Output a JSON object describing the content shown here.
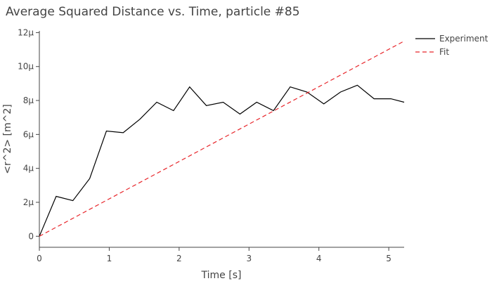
{
  "chart_data": {
    "type": "line",
    "title": "Average Squared Distance vs. Time, particle #85",
    "xlabel": "Time [s]",
    "ylabel": "<r^2> [m^2]",
    "xlim": [
      0,
      5.22
    ],
    "ylim": [
      -6.5e-07,
      1.21e-05
    ],
    "x_ticks": [
      {
        "value": 0,
        "label": "0"
      },
      {
        "value": 1,
        "label": "1"
      },
      {
        "value": 2,
        "label": "2"
      },
      {
        "value": 3,
        "label": "3"
      },
      {
        "value": 4,
        "label": "4"
      },
      {
        "value": 5,
        "label": "5"
      }
    ],
    "y_ticks": [
      {
        "value": 0,
        "label": "0"
      },
      {
        "value": 2e-06,
        "label": "2μ"
      },
      {
        "value": 4e-06,
        "label": "4μ"
      },
      {
        "value": 6e-06,
        "label": "6μ"
      },
      {
        "value": 8e-06,
        "label": "8μ"
      },
      {
        "value": 1e-05,
        "label": "10μ"
      },
      {
        "value": 1.2e-05,
        "label": "12μ"
      }
    ],
    "grid": false,
    "legend_position": "top-right",
    "series": [
      {
        "name": "Experiment",
        "color": "#000000",
        "style": "solid",
        "x": [
          0,
          0.24,
          0.48,
          0.72,
          0.96,
          1.2,
          1.44,
          1.68,
          1.92,
          2.15,
          2.39,
          2.63,
          2.87,
          3.11,
          3.35,
          3.59,
          3.83,
          4.07,
          4.31,
          4.55,
          4.79,
          5.03,
          5.22
        ],
        "y": [
          0,
          2.35e-06,
          2.1e-06,
          3.4e-06,
          6.2e-06,
          6.1e-06,
          6.9e-06,
          7.9e-06,
          7.4e-06,
          8.8e-06,
          7.7e-06,
          7.9e-06,
          7.2e-06,
          7.9e-06,
          7.4e-06,
          8.8e-06,
          8.5e-06,
          7.8e-06,
          8.5e-06,
          8.9e-06,
          8.1e-06,
          8.1e-06,
          7.9e-06
        ]
      },
      {
        "name": "Fit",
        "color": "#e8262b",
        "style": "dashed",
        "x": [
          0,
          5.22
        ],
        "y": [
          0,
          1.15e-05
        ]
      }
    ]
  }
}
